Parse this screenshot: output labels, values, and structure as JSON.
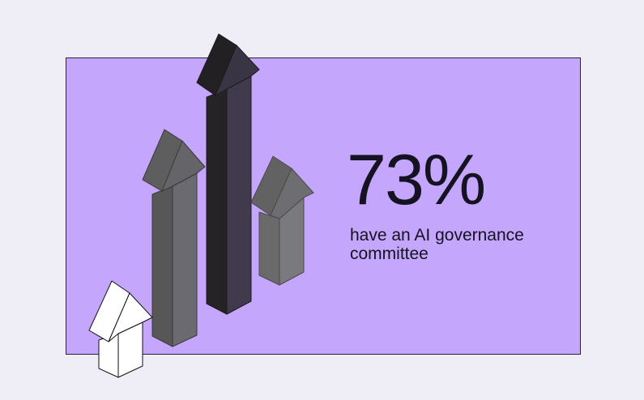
{
  "stat": "73%",
  "caption": "have an AI governance committee"
}
